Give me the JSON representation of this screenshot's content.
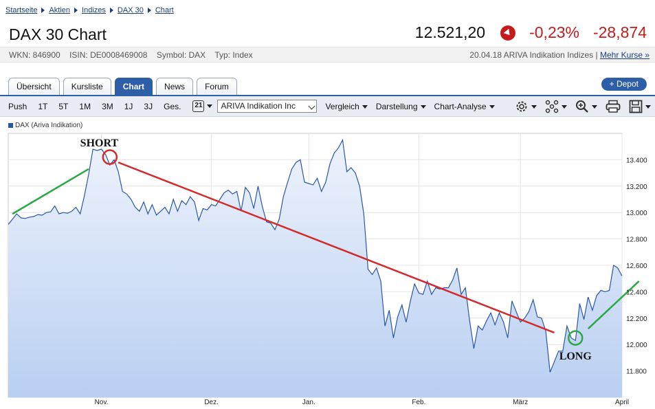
{
  "breadcrumb": [
    "Startseite",
    "Aktien",
    "Indizes",
    "DAX 30",
    "Chart"
  ],
  "title": "DAX 30 Chart",
  "quote": {
    "price": "12.521,20",
    "change_pct": "-0,23%",
    "change_abs": "-28,874",
    "direction_icon": "down-arrow-icon",
    "negative_color": "#c61b1b"
  },
  "meta": {
    "wkn": "WKN: 846900",
    "isin": "ISIN: DE0008469008",
    "symbol": "Symbol: DAX",
    "type": "Typ: Index",
    "source": "20.04.18 ARIVA Indikation Indizes | ",
    "more_link": "Mehr Kurse »"
  },
  "tabs": [
    "Übersicht",
    "Kursliste",
    "Chart",
    "News",
    "Forum"
  ],
  "active_tab": "Chart",
  "depot_button": "+ Depot",
  "toolbar": {
    "ranges": [
      "Push",
      "1T",
      "5T",
      "1M",
      "3M",
      "1J",
      "3J",
      "Ges."
    ],
    "calendar_label": "21",
    "source_select": "ARIVA Indikation Inc",
    "menus": [
      "Vergleich",
      "Darstellung",
      "Chart-Analyse"
    ],
    "tool_icons": [
      "gear-icon",
      "network-icon",
      "zoom-icon",
      "print-icon",
      "save-icon"
    ]
  },
  "chart_data": {
    "type": "area",
    "legend": [
      "DAX (Ariva Indikation)"
    ],
    "series": [
      {
        "name": "DAX (Ariva Indikation)",
        "color": "#2a56a8",
        "fill": "#c7d8f4",
        "values": [
          12910,
          12950,
          12990,
          12960,
          12955,
          12965,
          12970,
          12985,
          12980,
          13000,
          13005,
          13050,
          12990,
          13000,
          12995,
          13010,
          13040,
          12990,
          13130,
          13290,
          13480,
          13470,
          13480,
          13440,
          13360,
          13400,
          13310,
          13160,
          13140,
          13100,
          13040,
          13010,
          13080,
          12990,
          13060,
          12980,
          13010,
          13040,
          12990,
          13100,
          13010,
          13090,
          13060,
          13120,
          13080,
          12940,
          13030,
          13020,
          13060,
          13050,
          13100,
          13150,
          13170,
          13140,
          13160,
          13010,
          13190,
          13150,
          13030,
          13200,
          13050,
          12930,
          12920,
          12870,
          12950,
          13120,
          13230,
          13330,
          13380,
          13400,
          13230,
          13220,
          13210,
          13260,
          13160,
          13230,
          13370,
          13450,
          13490,
          13550,
          13310,
          13340,
          13300,
          13200,
          12990,
          12570,
          12530,
          12580,
          12480,
          12140,
          12260,
          12050,
          12210,
          12300,
          12170,
          12330,
          12460,
          12390,
          12380,
          12480,
          12380,
          12430,
          12420,
          12430,
          12430,
          12490,
          12580,
          12380,
          12430,
          12180,
          11970,
          12140,
          12110,
          12180,
          12240,
          12150,
          12240,
          12170,
          12050,
          12330,
          12250,
          12170,
          12200,
          12250,
          12340,
          12210,
          12200,
          12100,
          11790,
          11870,
          11950,
          11950,
          12140,
          12050,
          12030,
          12310,
          12190,
          12360,
          12260,
          12370,
          12410,
          12400,
          12410,
          12600,
          12580,
          12520
        ]
      }
    ],
    "x_tick_labels": [
      "Nov.",
      "Dez.",
      "Jan.",
      "Feb.",
      "März",
      "April"
    ],
    "y_ticks": [
      "13.400",
      "13.200",
      "13.000",
      "12.800",
      "12.600",
      "12.400",
      "12.200",
      "12.000",
      "11.800"
    ],
    "ylim": [
      11600,
      13600
    ],
    "grid": true,
    "annotations": {
      "short_label": "SHORT",
      "long_label": "LONG",
      "short_circle_color": "#d42a2a",
      "long_circle_color": "#2aa845",
      "down_trend_color": "#d42a2a",
      "up_trend_color": "#2aa845"
    }
  }
}
